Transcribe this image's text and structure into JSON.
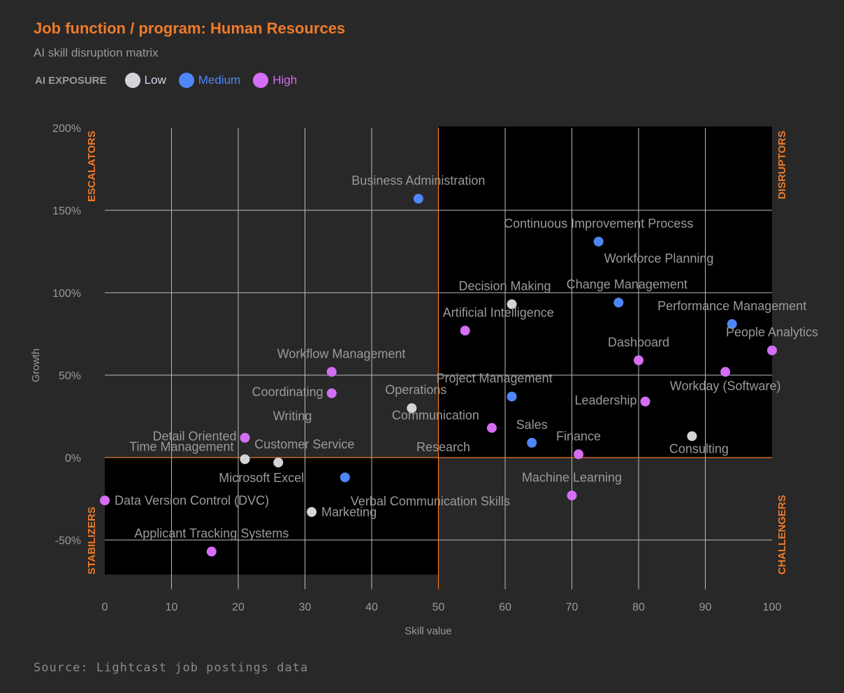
{
  "header": {
    "title": "Job function / program: Human Resources",
    "subtitle": "AI skill disruption matrix"
  },
  "legend": {
    "title": "AI EXPOSURE",
    "items": [
      {
        "key": "low",
        "label": "Low",
        "color": "#d4d4d8",
        "label_color": "#d9cfe6"
      },
      {
        "key": "medium",
        "label": "Medium",
        "color": "#4f86f7",
        "label_color": "#4f86f7"
      },
      {
        "key": "high",
        "label": "High",
        "color": "#d46ef5",
        "label_color": "#d46ef5"
      }
    ]
  },
  "footer": {
    "source": "Source: Lightcast job postings data"
  },
  "colors": {
    "accent": "#f07a2a",
    "quadrant_dark": "#000000",
    "background": "#282828",
    "grid": "#bbbbbb",
    "label": "#9a9a9a"
  },
  "chart_data": {
    "type": "scatter",
    "xlabel": "Skill value",
    "ylabel": "Growth",
    "xlim": [
      0,
      100
    ],
    "ylim": [
      -71,
      200
    ],
    "x_ticks": [
      0,
      10,
      20,
      30,
      40,
      50,
      60,
      70,
      80,
      90,
      100
    ],
    "y_ticks": [
      -50,
      0,
      50,
      100,
      150,
      200
    ],
    "y_tick_labels": [
      "-50%",
      "0%",
      "50%",
      "100%",
      "150%",
      "200%"
    ],
    "grid": true,
    "quadrant_split": {
      "x": 50,
      "y": 0
    },
    "quadrants": [
      {
        "name": "ESCALATORS",
        "position": "top-left"
      },
      {
        "name": "DISRUPTORS",
        "position": "top-right"
      },
      {
        "name": "STABILIZERS",
        "position": "bottom-left"
      },
      {
        "name": "CHALLENGERS",
        "position": "bottom-right"
      }
    ],
    "points": [
      {
        "label": "Business Administration",
        "x": 47,
        "y": 157,
        "exposure": "medium",
        "label_pos": "above"
      },
      {
        "label": "Continuous Improvement Process",
        "x": 74,
        "y": 131,
        "exposure": "medium",
        "label_pos": "above"
      },
      {
        "label": "Workforce Planning",
        "x": 74,
        "y": 131,
        "exposure": "medium",
        "label_pos": "below-right",
        "label_only": true
      },
      {
        "label": "Decision Making",
        "x": 61,
        "y": 93,
        "exposure": "low",
        "label_pos": "above"
      },
      {
        "label": "Change Management",
        "x": 77,
        "y": 94,
        "exposure": "medium",
        "label_pos": "above"
      },
      {
        "label": "Performance Management",
        "x": 94,
        "y": 81,
        "exposure": "medium",
        "label_pos": "above"
      },
      {
        "label": "Artificial Intelligence",
        "x": 54,
        "y": 77,
        "exposure": "high",
        "label_pos": "above-right"
      },
      {
        "label": "Dashboard",
        "x": 80,
        "y": 59,
        "exposure": "high",
        "label_pos": "above"
      },
      {
        "label": "People Analytics",
        "x": 100,
        "y": 65,
        "exposure": "high",
        "label_pos": "above"
      },
      {
        "label": "Workflow Management",
        "x": 34,
        "y": 52,
        "exposure": "high",
        "label_pos": "above-right"
      },
      {
        "label": "Workday (Software)",
        "x": 93,
        "y": 52,
        "exposure": "high",
        "label_pos": "below"
      },
      {
        "label": "Coordinating",
        "x": 34,
        "y": 39,
        "exposure": "high",
        "label_pos": "left"
      },
      {
        "label": "Project Management",
        "x": 61,
        "y": 37,
        "exposure": "medium",
        "label_pos": "above"
      },
      {
        "label": "Leadership",
        "x": 81,
        "y": 34,
        "exposure": "high",
        "label_pos": "left"
      },
      {
        "label": "Operations",
        "x": 46,
        "y": 30,
        "exposure": "low",
        "label_pos": "above-right"
      },
      {
        "label": "Communication",
        "x": 58,
        "y": 18,
        "exposure": "high",
        "label_pos": "left-above"
      },
      {
        "label": "Writing",
        "x": 21,
        "y": -1,
        "exposure": "high",
        "label_pos": "far-above-right",
        "label_only": true
      },
      {
        "label": "Detail Oriented",
        "x": 21,
        "y": 12,
        "exposure": "high",
        "label_pos": "left"
      },
      {
        "label": "Consulting",
        "x": 88,
        "y": 13,
        "exposure": "low",
        "label_pos": "below-left"
      },
      {
        "label": "Sales",
        "x": 64,
        "y": 9,
        "exposure": "medium",
        "label_pos": "above"
      },
      {
        "label": "Finance",
        "x": 71,
        "y": 2,
        "exposure": "high",
        "label_pos": "above"
      },
      {
        "label": "Research",
        "x": 50,
        "y": 3,
        "exposure": "low",
        "label_pos": "center",
        "label_only": true
      },
      {
        "label": "Time Management",
        "x": 21,
        "y": -1,
        "exposure": "low",
        "label_pos": "left-above"
      },
      {
        "label": "Customer Service",
        "x": 26,
        "y": -3,
        "exposure": "low",
        "label_pos": "above-right"
      },
      {
        "label": "Microsoft Excel",
        "x": 26,
        "y": -3,
        "exposure": "low",
        "label_pos": "below",
        "label_only": true
      },
      {
        "label": "Verbal Communication Skills",
        "x": 36,
        "y": -12,
        "exposure": "medium",
        "label_pos": "below-right"
      },
      {
        "label": "Machine Learning",
        "x": 70,
        "y": -23,
        "exposure": "high",
        "label_pos": "above"
      },
      {
        "label": "Data Version Control (DVC)",
        "x": 0,
        "y": -26,
        "exposure": "high",
        "label_pos": "right"
      },
      {
        "label": "Marketing",
        "x": 31,
        "y": -33,
        "exposure": "low",
        "label_pos": "right"
      },
      {
        "label": "Applicant Tracking Systems",
        "x": 16,
        "y": -57,
        "exposure": "high",
        "label_pos": "above"
      }
    ]
  }
}
